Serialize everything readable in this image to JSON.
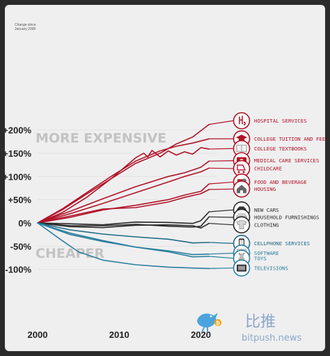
{
  "chart_data": {
    "type": "line",
    "title": "",
    "xlabel": "",
    "ylabel": "",
    "axis_note": [
      "Change since",
      "January 2000"
    ],
    "xlim": [
      2000,
      2022
    ],
    "ylim": [
      -110,
      215
    ],
    "xticks": [
      {
        "label": "2000",
        "value": 2000
      },
      {
        "label": "2010",
        "value": 2010
      },
      {
        "label": "2020",
        "value": 2020
      }
    ],
    "yticks": [
      {
        "label": "+200%",
        "value": 200
      },
      {
        "label": "+150%",
        "value": 150
      },
      {
        "label": "+100%",
        "value": 100
      },
      {
        "label": "+50%",
        "value": 50
      },
      {
        "label": "0%",
        "value": 0
      },
      {
        "label": "-50%",
        "value": -50
      },
      {
        "label": "-100%",
        "value": -100
      }
    ],
    "annotations": [
      {
        "text": "MORE EXPENSIVE",
        "x": 2000,
        "y": 173
      },
      {
        "text": "CHEAPER",
        "x": 2000,
        "y": -75
      }
    ],
    "series": [
      {
        "name": "HOSPITAL SERVICES",
        "color": "#b11226",
        "icon": "hospital-icon",
        "label_y": 220,
        "points": [
          [
            2000,
            0
          ],
          [
            2003,
            28
          ],
          [
            2006,
            62
          ],
          [
            2009,
            95
          ],
          [
            2012,
            128
          ],
          [
            2015,
            150
          ],
          [
            2017,
            170
          ],
          [
            2019,
            185
          ],
          [
            2021,
            212
          ]
        ]
      },
      {
        "name": "COLLEGE TUITION AND FEES",
        "color": "#b11226",
        "icon": "graduation-cap-icon",
        "label_y": 181,
        "points": [
          [
            2000,
            0
          ],
          [
            2003,
            30
          ],
          [
            2006,
            65
          ],
          [
            2009,
            100
          ],
          [
            2012,
            133
          ],
          [
            2015,
            155
          ],
          [
            2017,
            165
          ],
          [
            2019,
            172
          ],
          [
            2021,
            181
          ]
        ]
      },
      {
        "name": "COLLEGE TEXTBOOKS",
        "color": "#b11226",
        "icon": "textbook-icon",
        "label_y": 160,
        "points": [
          [
            2000,
            0
          ],
          [
            2003,
            22
          ],
          [
            2006,
            55
          ],
          [
            2009,
            95
          ],
          [
            2011,
            125
          ],
          [
            2012,
            140
          ],
          [
            2013,
            150
          ],
          [
            2013.5,
            142
          ],
          [
            2014,
            156
          ],
          [
            2015,
            142
          ],
          [
            2016,
            155
          ],
          [
            2017,
            146
          ],
          [
            2018,
            153
          ],
          [
            2019,
            148
          ],
          [
            2020,
            162
          ],
          [
            2021,
            159
          ]
        ]
      },
      {
        "name": "MEDICAL CARE SERVICES",
        "color": "#b11226",
        "icon": "medical-kit-icon",
        "label_y": 134,
        "points": [
          [
            2000,
            0
          ],
          [
            2004,
            25
          ],
          [
            2008,
            52
          ],
          [
            2012,
            78
          ],
          [
            2016,
            100
          ],
          [
            2018,
            108
          ],
          [
            2020,
            120
          ],
          [
            2021,
            133
          ]
        ]
      },
      {
        "name": "CHILDCARE",
        "color": "#b11226",
        "icon": "stroller-icon",
        "label_y": 117,
        "points": [
          [
            2000,
            0
          ],
          [
            2004,
            20
          ],
          [
            2008,
            42
          ],
          [
            2012,
            65
          ],
          [
            2016,
            88
          ],
          [
            2018,
            100
          ],
          [
            2020,
            110
          ],
          [
            2021,
            118
          ]
        ]
      },
      {
        "name": "FOOD AND BEVERAGE",
        "color": "#b11226",
        "icon": "food-icon",
        "label_y": 88,
        "points": [
          [
            2000,
            0
          ],
          [
            2004,
            12
          ],
          [
            2008,
            28
          ],
          [
            2012,
            38
          ],
          [
            2016,
            50
          ],
          [
            2018,
            60
          ],
          [
            2020,
            68
          ],
          [
            2021,
            84
          ]
        ]
      },
      {
        "name": "HOUSING",
        "color": "#b11226",
        "icon": "house-icon",
        "label_y": 73,
        "points": [
          [
            2000,
            0
          ],
          [
            2004,
            15
          ],
          [
            2008,
            30
          ],
          [
            2012,
            33
          ],
          [
            2016,
            45
          ],
          [
            2018,
            55
          ],
          [
            2020,
            63
          ],
          [
            2021,
            72
          ]
        ]
      },
      {
        "name": "NEW CARS",
        "color": "#2a2a2a",
        "icon": "car-icon",
        "label_y": 28,
        "points": [
          [
            2000,
            0
          ],
          [
            2004,
            -2
          ],
          [
            2008,
            -4
          ],
          [
            2012,
            2
          ],
          [
            2016,
            1
          ],
          [
            2019,
            -1
          ],
          [
            2020,
            5
          ],
          [
            2021,
            24
          ]
        ]
      },
      {
        "name": "HOUSEHOLD FURNISHINGS",
        "color": "#2a2a2a",
        "icon": "sofa-icon",
        "label_y": 12,
        "points": [
          [
            2000,
            0
          ],
          [
            2004,
            -6
          ],
          [
            2008,
            -6
          ],
          [
            2012,
            -3
          ],
          [
            2016,
            -7
          ],
          [
            2019,
            -9
          ],
          [
            2020,
            -7
          ],
          [
            2021,
            13
          ]
        ]
      },
      {
        "name": "CLOTHING",
        "color": "#2a2a2a",
        "icon": "shirt-icon",
        "label_y": -4,
        "points": [
          [
            2000,
            0
          ],
          [
            2004,
            -8
          ],
          [
            2008,
            -10
          ],
          [
            2012,
            -5
          ],
          [
            2016,
            -4
          ],
          [
            2019,
            -6
          ],
          [
            2020,
            -11
          ],
          [
            2021,
            -1
          ]
        ]
      },
      {
        "name": "CELLPHONE SERVICES",
        "color": "#1e6a86",
        "icon": "cellphone-icon",
        "label_y": -44,
        "points": [
          [
            2000,
            0
          ],
          [
            2004,
            -15
          ],
          [
            2008,
            -24
          ],
          [
            2012,
            -30
          ],
          [
            2016,
            -35
          ],
          [
            2019,
            -43
          ],
          [
            2021,
            -42
          ]
        ]
      },
      {
        "name": "SOFTWARE",
        "color": "#2b7f9e",
        "icon": "software-icon",
        "label_y": -65,
        "points": [
          [
            2000,
            0
          ],
          [
            2004,
            -25
          ],
          [
            2008,
            -40
          ],
          [
            2012,
            -52
          ],
          [
            2016,
            -60
          ],
          [
            2019,
            -68
          ],
          [
            2021,
            -67
          ]
        ]
      },
      {
        "name": "TOYS",
        "color": "#2b7f9e",
        "icon": "teddy-bear-icon",
        "label_y": -76,
        "points": [
          [
            2000,
            0
          ],
          [
            2004,
            -22
          ],
          [
            2008,
            -38
          ],
          [
            2012,
            -52
          ],
          [
            2016,
            -62
          ],
          [
            2019,
            -73
          ],
          [
            2021,
            -72
          ]
        ]
      },
      {
        "name": "TELEVISIONS",
        "color": "#2b7f9e",
        "icon": "television-icon",
        "label_y": -97,
        "points": [
          [
            2000,
            0
          ],
          [
            2003,
            -38
          ],
          [
            2005,
            -62
          ],
          [
            2008,
            -80
          ],
          [
            2012,
            -90
          ],
          [
            2016,
            -95
          ],
          [
            2019,
            -97
          ],
          [
            2021,
            -98
          ]
        ]
      }
    ]
  },
  "watermark": {
    "text_cn": "比推",
    "text_en": "bitpush.news",
    "icon": "bitpush-bird-logo",
    "color": "#8ba7c9"
  }
}
